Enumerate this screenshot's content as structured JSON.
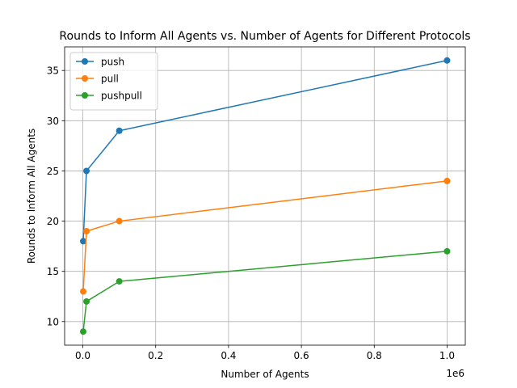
{
  "chart_data": {
    "type": "line",
    "title": "Rounds to Inform All Agents vs. Number of Agents for Different Protocols",
    "xlabel": "Number of Agents",
    "ylabel": "Rounds to Inform All Agents",
    "x_offset_label": "1e6",
    "xlim": [
      -50000,
      1050000
    ],
    "ylim": [
      7.65,
      37.35
    ],
    "x_ticks": [
      0,
      200000,
      400000,
      600000,
      800000,
      1000000
    ],
    "x_tick_labels": [
      "0.0",
      "0.2",
      "0.4",
      "0.6",
      "0.8",
      "1.0"
    ],
    "y_ticks": [
      10,
      15,
      20,
      25,
      30,
      35
    ],
    "y_tick_labels": [
      "10",
      "15",
      "20",
      "25",
      "30",
      "35"
    ],
    "grid": true,
    "legend_position": "top-left",
    "x": [
      1000,
      10000,
      100000,
      1000000
    ],
    "series": [
      {
        "name": "push",
        "values": [
          18,
          25,
          29,
          36
        ],
        "color": "#1f77b4"
      },
      {
        "name": "pull",
        "values": [
          13,
          19,
          20,
          24
        ],
        "color": "#ff7f0e"
      },
      {
        "name": "pushpull",
        "values": [
          9,
          12,
          14,
          17
        ],
        "color": "#2ca02c"
      }
    ]
  }
}
